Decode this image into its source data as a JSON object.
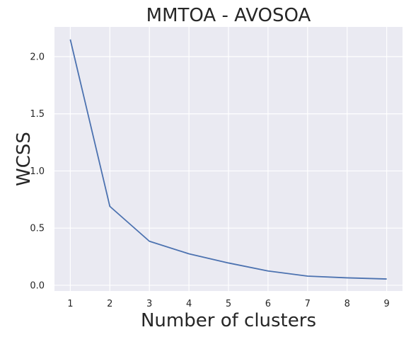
{
  "chart_data": {
    "type": "line",
    "title": "MMTOA - AVOSOA",
    "xlabel": "Number of clusters",
    "ylabel": "WCSS",
    "x": [
      1,
      2,
      3,
      4,
      5,
      6,
      7,
      8,
      9
    ],
    "series": [
      {
        "values": [
          2.15,
          0.69,
          0.385,
          0.275,
          0.195,
          0.125,
          0.08,
          0.065,
          0.055
        ],
        "color": "#4c72b0"
      }
    ],
    "xticks": [
      "1",
      "2",
      "3",
      "4",
      "5",
      "6",
      "7",
      "8",
      "9"
    ],
    "yticks": [
      "0.0",
      "0.5",
      "1.0",
      "1.5",
      "2.0"
    ],
    "xlim": [
      0.6,
      9.4
    ],
    "ylim": [
      -0.05,
      2.26
    ],
    "grid": true,
    "colors": {
      "plot_background": "#eaeaf2",
      "grid": "#ffffff",
      "text": "#262626"
    }
  }
}
